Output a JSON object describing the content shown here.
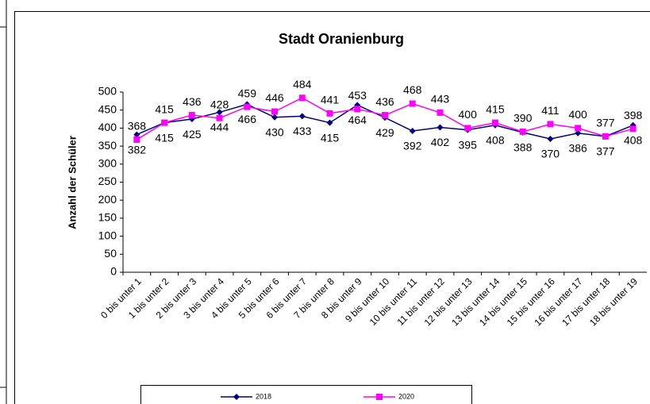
{
  "chart_data": {
    "type": "line",
    "title": "Stadt Oranienburg",
    "y_label": "Anzahl der Schüler",
    "categories": [
      "0 bis unter 1",
      "1 bis unter 2",
      "2 bis unter 3",
      "3 bis unter 4",
      "4 bis unter 5",
      "5 bis unter 6",
      "6 bis unter 7",
      "7 bis unter 8",
      "8 bis unter 9",
      "9 bis unter 10",
      "10 bis unter 11",
      "11 bis unter 12",
      "12 bis unter 13",
      "13 bis unter 14",
      "14 bis unter 15",
      "15 bis unter 16",
      "16 bis unter 17",
      "17 bis unter 18",
      "18 bis unter 19"
    ],
    "series": [
      {
        "name": "2018",
        "color": "#000080",
        "marker": "diamond",
        "values": [
          382,
          415,
          425,
          444,
          466,
          430,
          433,
          415,
          464,
          429,
          392,
          402,
          395,
          408,
          388,
          370,
          386,
          377,
          408
        ]
      },
      {
        "name": "2020",
        "color": "#ff00ff",
        "marker": "square",
        "values": [
          368,
          415,
          436,
          428,
          459,
          446,
          484,
          441,
          453,
          436,
          468,
          443,
          400,
          415,
          390,
          411,
          400,
          377,
          398
        ]
      }
    ],
    "ylim": [
      0,
      500
    ],
    "yticks": [
      0,
      50,
      100,
      150,
      200,
      250,
      300,
      350,
      400,
      450,
      500
    ],
    "legend": "bottom"
  }
}
